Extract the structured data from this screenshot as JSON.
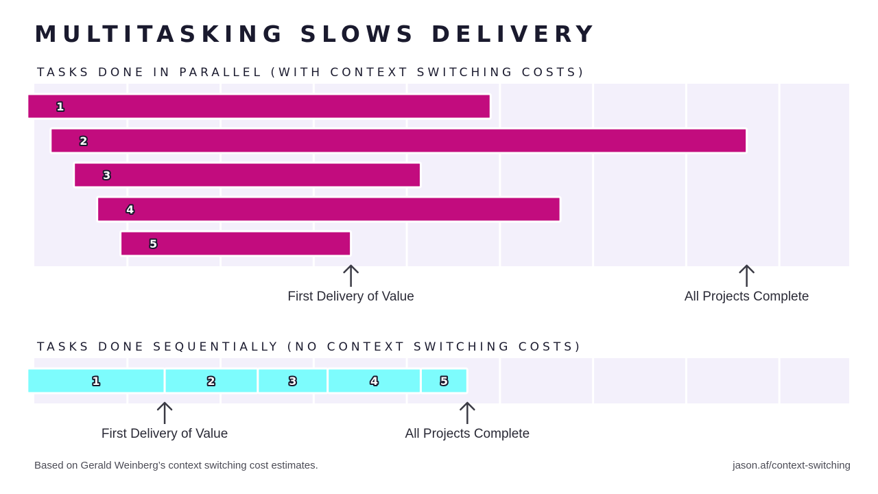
{
  "title": "MULTITASKING SLOWS DELIVERY",
  "chart_data": [
    {
      "type": "bar",
      "subtitle": "TASKS DONE IN PARALLEL (WITH CONTEXT SWITCHING COSTS)",
      "xlim": [
        0,
        35
      ],
      "grid": true,
      "bar_color": "#c20c7e",
      "label_color": "#ffffff",
      "tasks": [
        {
          "label": "1",
          "start": -0.3,
          "end": 19.6
        },
        {
          "label": "2",
          "start": 0.7,
          "end": 30.6
        },
        {
          "label": "3",
          "start": 1.7,
          "end": 16.6
        },
        {
          "label": "4",
          "start": 2.7,
          "end": 22.6
        },
        {
          "label": "5",
          "start": 3.7,
          "end": 13.6
        }
      ],
      "annotations": [
        {
          "text": "First Delivery of Value",
          "x": 13.6
        },
        {
          "text": "All Projects Complete",
          "x": 30.6
        }
      ]
    },
    {
      "type": "bar",
      "subtitle": "TASKS DONE SEQUENTIALLY (NO CONTEXT SWITCHING COSTS)",
      "xlim": [
        0,
        35
      ],
      "grid": true,
      "bar_color": "#7dfcfd",
      "label_color": "#ffffff",
      "tasks": [
        {
          "label": "1",
          "start": -0.3,
          "end": 5.6
        },
        {
          "label": "2",
          "start": 5.6,
          "end": 9.6
        },
        {
          "label": "3",
          "start": 9.6,
          "end": 12.6
        },
        {
          "label": "4",
          "start": 12.6,
          "end": 16.6
        },
        {
          "label": "5",
          "start": 16.6,
          "end": 18.6
        }
      ],
      "annotations": [
        {
          "text": "First Delivery of Value",
          "x": 5.6
        },
        {
          "text": "All Projects Complete",
          "x": 18.6
        }
      ]
    }
  ],
  "footer": {
    "source": "Based on Gerald Weinberg’s context switching cost estimates.",
    "url": "jason.af/context-switching"
  },
  "colors": {
    "panel_bg": "#f3f0fb",
    "grid": "#ffffff",
    "text": "#1a1a2e",
    "arrow": "#3a3a44"
  }
}
